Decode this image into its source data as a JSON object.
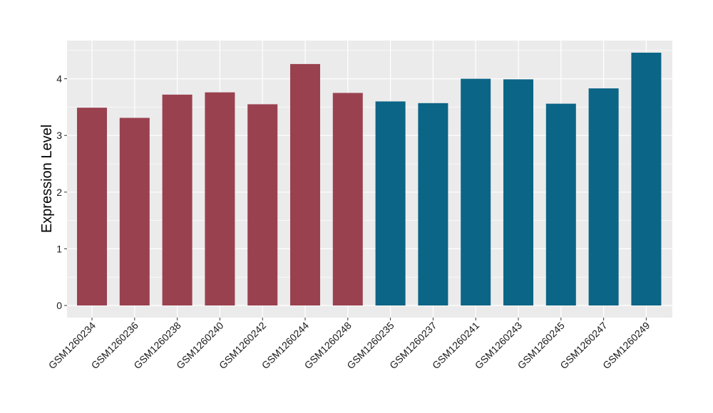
{
  "chart_data": {
    "type": "bar",
    "title": "",
    "xlabel": "",
    "ylabel": "Expression Level",
    "ylim": [
      0,
      4.7
    ],
    "yticks": [
      0,
      1,
      2,
      3,
      4
    ],
    "grid": true,
    "legend": "none",
    "categories": [
      "GSM1260234",
      "GSM1260236",
      "GSM1260238",
      "GSM1260240",
      "GSM1260242",
      "GSM1260244",
      "GSM1260248",
      "GSM1260235",
      "GSM1260237",
      "GSM1260241",
      "GSM1260243",
      "GSM1260245",
      "GSM1260247",
      "GSM1260249"
    ],
    "values": [
      3.49,
      3.31,
      3.72,
      3.76,
      3.55,
      4.26,
      3.75,
      3.6,
      3.57,
      4.0,
      3.99,
      3.56,
      3.83,
      4.46
    ],
    "bar_colors": [
      "#9a4150",
      "#9a4150",
      "#9a4150",
      "#9a4150",
      "#9a4150",
      "#9a4150",
      "#9a4150",
      "#0b6586",
      "#0b6586",
      "#0b6586",
      "#0b6586",
      "#0b6586",
      "#0b6586",
      "#0b6586"
    ],
    "panel_background": "#ebebeb",
    "grid_color": "#ffffff"
  }
}
